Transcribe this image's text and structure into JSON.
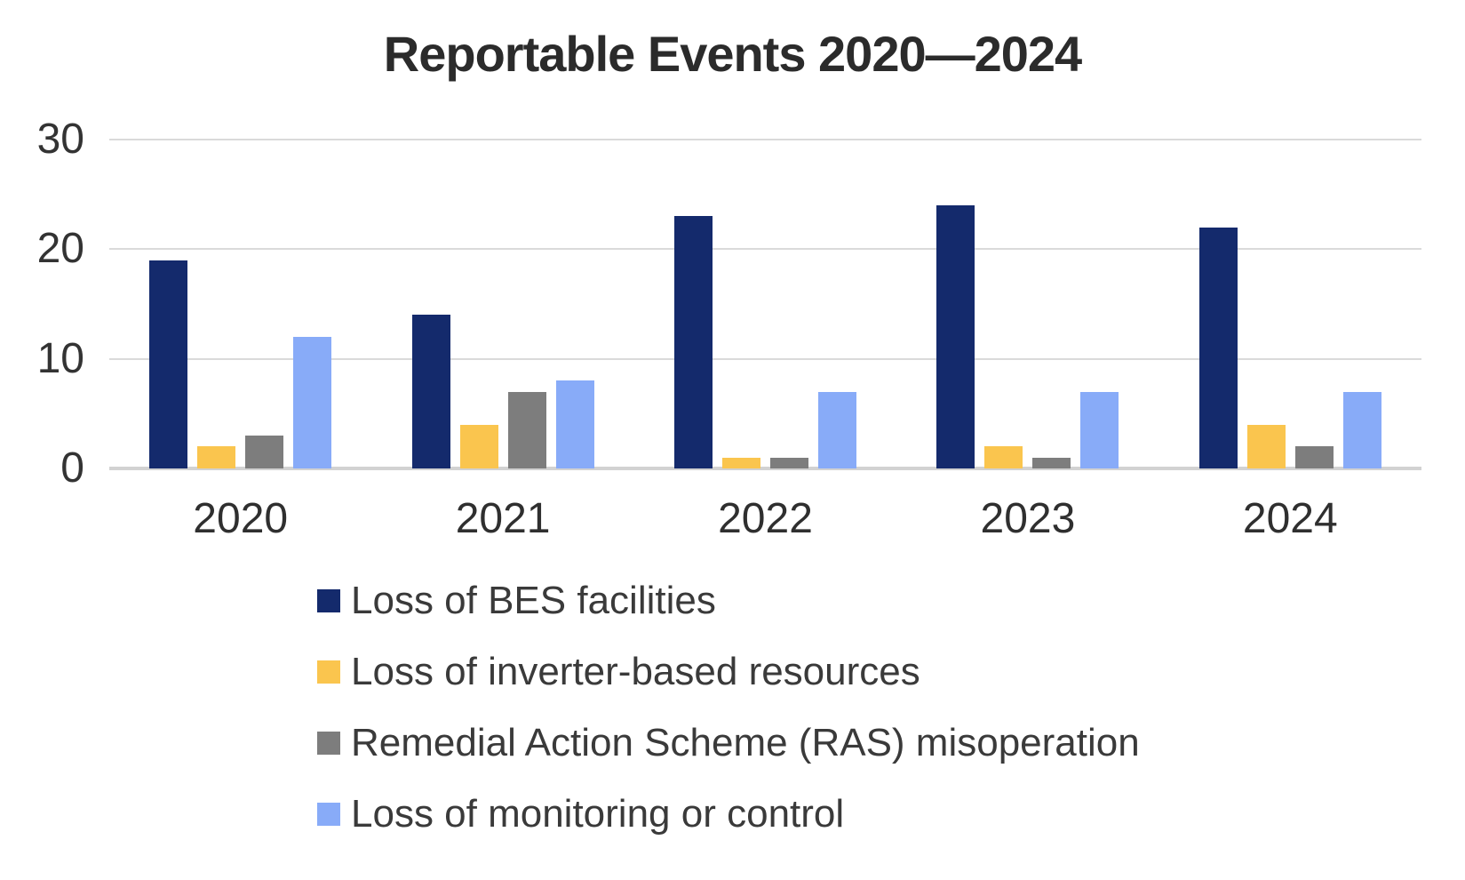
{
  "chart_data": {
    "type": "bar",
    "title": "Reportable Events 2020—2024",
    "categories": [
      "2020",
      "2021",
      "2022",
      "2023",
      "2024"
    ],
    "series": [
      {
        "name": "Loss of BES facilities",
        "color": "#142A6C",
        "values": [
          19,
          14,
          23,
          24,
          22
        ]
      },
      {
        "name": "Loss of inverter-based resources",
        "color": "#FAC54E",
        "values": [
          2,
          4,
          1,
          2,
          4
        ]
      },
      {
        "name": "Remedial Action Scheme (RAS) misoperation",
        "color": "#7D7D7D",
        "values": [
          3,
          7,
          1,
          1,
          2
        ]
      },
      {
        "name": "Loss of monitoring or control",
        "color": "#88ABF8",
        "values": [
          12,
          8,
          7,
          7,
          7
        ]
      }
    ],
    "xlabel": "",
    "ylabel": "",
    "ylim": [
      0,
      30
    ],
    "yticks": [
      0,
      10,
      20,
      30
    ],
    "grid": true,
    "legend_position": "bottom-left",
    "colors": {
      "gridline": "#DADADA",
      "axis_line": "#D2D2D2",
      "title_text": "#2B2B2B",
      "tick_text": "#333333",
      "legend_text": "#3A3A3A",
      "background": "#FFFFFF"
    }
  }
}
